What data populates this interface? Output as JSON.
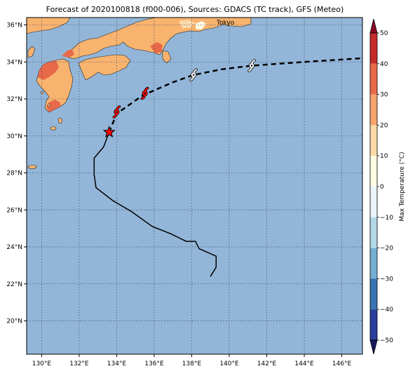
{
  "title": "Forecast of 2020100818 (f000-006), Sources: GDACS (TC track), GFS (Meteo)",
  "map": {
    "lon_range": [
      129.2,
      147.1
    ],
    "lat_range": [
      18.2,
      36.4
    ],
    "lon_ticks": [
      "130°E",
      "132°E",
      "134°E",
      "136°E",
      "138°E",
      "140°E",
      "142°E",
      "144°E",
      "146°E"
    ],
    "lat_ticks": [
      "20°N",
      "22°N",
      "24°N",
      "26°N",
      "28°N",
      "30°N",
      "32°N",
      "34°N",
      "36°N"
    ],
    "grid": "dotted",
    "ocean_color": "#93b6d8",
    "city_label": "Tokyo"
  },
  "colorbar": {
    "label": "Max Temperature (°C)",
    "ticks": [
      "50",
      "40",
      "30",
      "20",
      "10",
      "0",
      "−10",
      "−20",
      "−30",
      "−40",
      "−50"
    ],
    "colors": [
      "#870a24",
      "#c52b2b",
      "#e8694a",
      "#f5a46d",
      "#fbd9a8",
      "#fffbe3",
      "#e8f4f8",
      "#b3d9e8",
      "#74aed3",
      "#3a73b2",
      "#2a3e9b",
      "#17195f"
    ]
  },
  "track": {
    "observed": [
      [
        139.0,
        22.4
      ],
      [
        139.3,
        22.9
      ],
      [
        139.3,
        23.5
      ],
      [
        138.4,
        23.9
      ],
      [
        138.2,
        24.3
      ],
      [
        137.7,
        24.3
      ],
      [
        136.9,
        24.7
      ],
      [
        135.9,
        25.1
      ],
      [
        134.8,
        25.9
      ],
      [
        133.8,
        26.5
      ],
      [
        132.9,
        27.2
      ],
      [
        132.8,
        27.9
      ],
      [
        132.8,
        28.8
      ],
      [
        133.3,
        29.4
      ],
      [
        133.6,
        30.2
      ]
    ],
    "forecast": [
      [
        133.6,
        30.2
      ],
      [
        134.0,
        31.2
      ],
      [
        135.4,
        32.2
      ],
      [
        137.0,
        32.9
      ],
      [
        138.1,
        33.3
      ],
      [
        139.6,
        33.6
      ],
      [
        141.2,
        33.8
      ],
      [
        144.0,
        34.0
      ],
      [
        147.1,
        34.2
      ]
    ],
    "current_position": [
      133.6,
      30.2
    ],
    "storm_symbols": [
      {
        "lon": 134.0,
        "lat": 31.3,
        "color": "#ff0000"
      },
      {
        "lon": 135.5,
        "lat": 32.3,
        "color": "#ff0000"
      },
      {
        "lon": 138.1,
        "lat": 33.3,
        "color": "#ffffff"
      },
      {
        "lon": 141.2,
        "lat": 33.8,
        "color": "#ffffff"
      }
    ]
  }
}
